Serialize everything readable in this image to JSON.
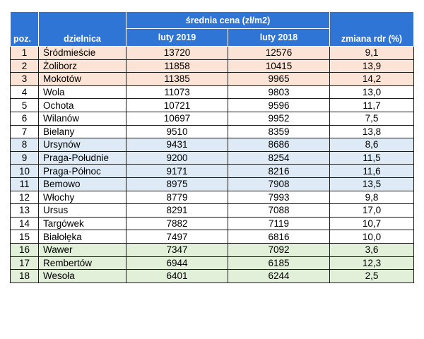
{
  "header": {
    "price_group": "średnia cena (zł/m2)",
    "col_poz": "poz.",
    "col_district": "dzielnica",
    "col_feb2019": "luty 2019",
    "col_feb2018": "luty 2018",
    "col_change": "zmiana rdr (%)"
  },
  "colors": {
    "header_blue": "#2f75d6",
    "top_orange": "#fbe3d5",
    "middle_blue": "#deebf6",
    "bottom_green": "#e2efd9"
  },
  "rows": [
    {
      "poz": "1",
      "district": "Śródmieście",
      "feb2019": "13720",
      "feb2018": "12576",
      "change": "9,1",
      "group": "top3"
    },
    {
      "poz": "2",
      "district": "Żoliborz",
      "feb2019": "11858",
      "feb2018": "10415",
      "change": "13,9",
      "group": "top3"
    },
    {
      "poz": "3",
      "district": "Mokotów",
      "feb2019": "11385",
      "feb2018": "9965",
      "change": "14,2",
      "group": "top3"
    },
    {
      "poz": "4",
      "district": "Wola",
      "feb2019": "11073",
      "feb2018": "9803",
      "change": "13,0",
      "group": "plain"
    },
    {
      "poz": "5",
      "district": "Ochota",
      "feb2019": "10721",
      "feb2018": "9596",
      "change": "11,7",
      "group": "plain"
    },
    {
      "poz": "6",
      "district": "Wilanów",
      "feb2019": "10697",
      "feb2018": "9952",
      "change": "7,5",
      "group": "plain"
    },
    {
      "poz": "7",
      "district": "Bielany",
      "feb2019": "9510",
      "feb2018": "8359",
      "change": "13,8",
      "group": "plain"
    },
    {
      "poz": "8",
      "district": "Ursynów",
      "feb2019": "9431",
      "feb2018": "8686",
      "change": "8,6",
      "group": "blue"
    },
    {
      "poz": "9",
      "district": "Praga-Południe",
      "feb2019": "9200",
      "feb2018": "8254",
      "change": "11,5",
      "group": "blue"
    },
    {
      "poz": "10",
      "district": "Praga-Północ",
      "feb2019": "9171",
      "feb2018": "8216",
      "change": "11,6",
      "group": "blue"
    },
    {
      "poz": "11",
      "district": "Bemowo",
      "feb2019": "8975",
      "feb2018": "7908",
      "change": "13,5",
      "group": "blue"
    },
    {
      "poz": "12",
      "district": "Włochy",
      "feb2019": "8779",
      "feb2018": "7993",
      "change": "9,8",
      "group": "plain"
    },
    {
      "poz": "13",
      "district": "Ursus",
      "feb2019": "8291",
      "feb2018": "7088",
      "change": "17,0",
      "group": "plain"
    },
    {
      "poz": "14",
      "district": "Targówek",
      "feb2019": "7882",
      "feb2018": "7119",
      "change": "10,7",
      "group": "plain"
    },
    {
      "poz": "15",
      "district": "Białołęka",
      "feb2019": "7497",
      "feb2018": "6816",
      "change": "10,0",
      "group": "plain"
    },
    {
      "poz": "16",
      "district": "Wawer",
      "feb2019": "7347",
      "feb2018": "7092",
      "change": "3,6",
      "group": "green"
    },
    {
      "poz": "17",
      "district": "Rembertów",
      "feb2019": "6944",
      "feb2018": "6185",
      "change": "12,3",
      "group": "green"
    },
    {
      "poz": "18",
      "district": "Wesoła",
      "feb2019": "6401",
      "feb2018": "6244",
      "change": "2,5",
      "group": "green"
    }
  ]
}
